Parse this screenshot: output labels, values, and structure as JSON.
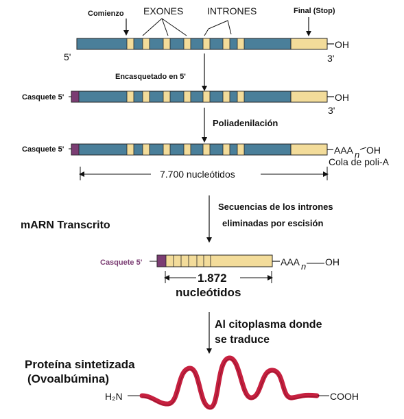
{
  "colors": {
    "exon": "#f3dc9a",
    "intron": "#4a7f9a",
    "cap": "#7b3d73",
    "protein": "#c6203f",
    "cap_label_purple": "#7b3d73"
  },
  "labels": {
    "comienzo": "Comienzo",
    "exones": "EXONES",
    "intrones": "INTRONES",
    "final": "Final (Stop)",
    "five_prime": "5'",
    "three_prime_a": "3'",
    "three_prime_b": "3'",
    "oh_a": "OH",
    "oh_b": "OH",
    "encasquetado": "Encasquetado en 5'",
    "casquete_a": "Casquete 5'",
    "casquete_b": "Casquete 5'",
    "casquete_c": "Casquete 5'",
    "poliadenilacion": "Poliadenilación",
    "aaa_a": "AAA",
    "n_a": "n",
    "oh_tail_a": "OH",
    "cola": "Cola de poli-A",
    "nucleotidos_total": "7.700 nucleótidos",
    "secuencias_1": "Secuencias de los intrones",
    "secuencias_2": "eliminadas por escisión",
    "marn": "mARN Transcrito",
    "aaa_b": "AAA",
    "n_b": "n",
    "oh_tail_b": "OH",
    "n1872": "1.872",
    "nucleotidos_short": "nucleótidos",
    "citoplasma_1": "Al citoplasma donde",
    "citoplasma_2": "se traduce",
    "proteina_1": "Proteína sintetizada",
    "proteina_2": "(Ovoalbúmina)",
    "h2n": "H₂N",
    "cooh": "COOH"
  }
}
